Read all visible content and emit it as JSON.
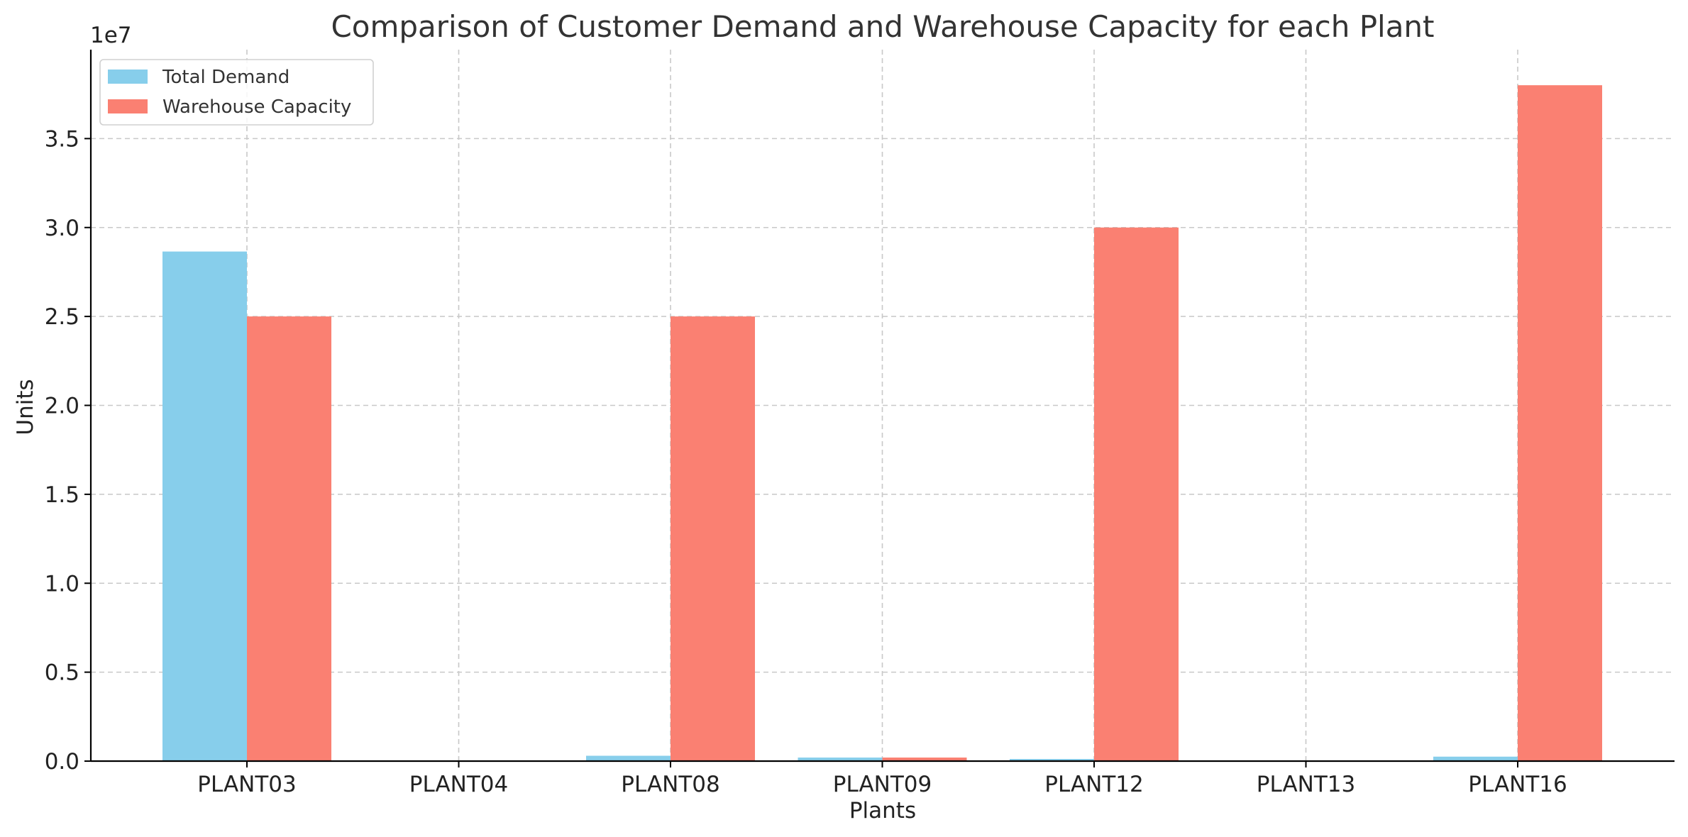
{
  "chart_data": {
    "type": "bar",
    "title": "Comparison of Customer Demand and Warehouse Capacity for each Plant",
    "xlabel": "Plants",
    "ylabel": "Units",
    "y_offset_label": "1e7",
    "categories": [
      "PLANT03",
      "PLANT04",
      "PLANT08",
      "PLANT09",
      "PLANT12",
      "PLANT13",
      "PLANT16"
    ],
    "series": [
      {
        "name": "Total Demand",
        "color": "#87CEEB",
        "values": [
          28650000,
          0,
          300000,
          200000,
          120000,
          0,
          250000
        ]
      },
      {
        "name": "Warehouse Capacity",
        "color": "#FA8072",
        "values": [
          25000000,
          0,
          25000000,
          200000,
          30000000,
          0,
          38000000
        ]
      }
    ],
    "ylim": [
      0,
      40000000
    ],
    "yticks": [
      0,
      5000000,
      10000000,
      15000000,
      20000000,
      25000000,
      30000000,
      35000000
    ],
    "ytick_labels": [
      "0.0",
      "0.5",
      "1.0",
      "1.5",
      "2.0",
      "2.5",
      "3.0",
      "3.5"
    ],
    "grid": true,
    "legend_position": "top-left"
  }
}
